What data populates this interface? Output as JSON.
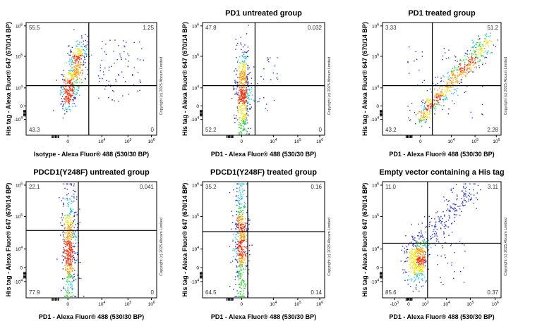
{
  "panels": [
    {
      "title": "",
      "xlabel": "Isotype - Alexa Fluor® 488 (530/30 BP)",
      "ylabel": "His tag - Alexa Fluor® 647 (670/14 BP)",
      "quadrants": {
        "ul": "55.5",
        "ur": "1.25",
        "ll": "43.3",
        "lr": "0"
      }
    },
    {
      "title": "PD1 untreated group",
      "xlabel": "PD1 - Alexa Fluor® 488 (530/30 BP)",
      "ylabel": "His tag - Alexa Fluor® 647 (670/14 BP)",
      "quadrants": {
        "ul": "47.8",
        "ur": "0.032",
        "ll": "52.2",
        "lr": "0"
      }
    },
    {
      "title": "PD1 treated group",
      "xlabel": "PD1 - Alexa Fluor® 488 (530/30 BP)",
      "ylabel": "His tag - Alexa Fluor® 647 (670/14 BP)",
      "quadrants": {
        "ul": "3.33",
        "ur": "51.2",
        "ll": "43.2",
        "lr": "2.28"
      }
    },
    {
      "title": "PDCD1(Y248F) untreated group",
      "xlabel": "PD1 - Alexa Fluor® 488 (530/30 BP)",
      "ylabel": "His tag - Alexa Fluor® 647 (670/14 BP)",
      "quadrants": {
        "ul": "22.1",
        "ur": "0.041",
        "ll": "77.9",
        "lr": "0"
      }
    },
    {
      "title": "PDCD1(Y248F) treated group",
      "xlabel": "PD1 - Alexa Fluor® 488 (530/30 BP)",
      "ylabel": "His tag - Alexa Fluor® 647 (670/14 BP)",
      "quadrants": {
        "ul": "35.2",
        "ur": "0.16",
        "ll": "64.5",
        "lr": "0.14"
      }
    },
    {
      "title": "Empty vector containing a His tag",
      "xlabel": "PD1 - Alexa Fluor® 488 (530/30 BP)",
      "ylabel": "His tag - Alexa Fluor® 647 (670/14 BP)",
      "quadrants": {
        "ul": "11.0",
        "ur": "3.11",
        "ll": "85.6",
        "lr": "0.37"
      }
    }
  ],
  "copyright": "Copyright (c) 2025 Abcam Limited",
  "ticks": {
    "y": [
      "10^6",
      "10^5",
      "10^4",
      "0",
      "-10^4"
    ],
    "x": [
      "0",
      "10^4",
      "10^5",
      "10^6"
    ],
    "x_with_negative": [
      "-10^3",
      "0",
      "10^3",
      "10^4",
      "10^5",
      "10^6"
    ]
  },
  "chart_data": [
    {
      "type": "scatter",
      "title": "",
      "xlabel": "Isotype - Alexa Fluor® 488 (530/30 BP)",
      "ylabel": "His tag - Alexa Fluor® 647 (670/14 BP)",
      "x_scale": "biexponential",
      "y_scale": "biexponential",
      "quadrant_percentages": {
        "upper_left": 55.5,
        "upper_right": 1.25,
        "lower_left": 43.3,
        "lower_right": 0
      }
    },
    {
      "type": "scatter",
      "title": "PD1 untreated group",
      "xlabel": "PD1 - Alexa Fluor® 488 (530/30 BP)",
      "ylabel": "His tag - Alexa Fluor® 647 (670/14 BP)",
      "x_scale": "biexponential",
      "y_scale": "biexponential",
      "quadrant_percentages": {
        "upper_left": 47.8,
        "upper_right": 0.032,
        "lower_left": 52.2,
        "lower_right": 0
      }
    },
    {
      "type": "scatter",
      "title": "PD1 treated group",
      "xlabel": "PD1 - Alexa Fluor® 488 (530/30 BP)",
      "ylabel": "His tag - Alexa Fluor® 647 (670/14 BP)",
      "x_scale": "biexponential",
      "y_scale": "biexponential",
      "quadrant_percentages": {
        "upper_left": 3.33,
        "upper_right": 51.2,
        "lower_left": 43.2,
        "lower_right": 2.28
      }
    },
    {
      "type": "scatter",
      "title": "PDCD1(Y248F) untreated group",
      "xlabel": "PD1 - Alexa Fluor® 488 (530/30 BP)",
      "ylabel": "His tag - Alexa Fluor® 647 (670/14 BP)",
      "x_scale": "biexponential",
      "y_scale": "biexponential",
      "quadrant_percentages": {
        "upper_left": 22.1,
        "upper_right": 0.041,
        "lower_left": 77.9,
        "lower_right": 0
      }
    },
    {
      "type": "scatter",
      "title": "PDCD1(Y248F) treated group",
      "xlabel": "PD1 - Alexa Fluor® 488 (530/30 BP)",
      "ylabel": "His tag - Alexa Fluor® 647 (670/14 BP)",
      "x_scale": "biexponential",
      "y_scale": "biexponential",
      "quadrant_percentages": {
        "upper_left": 35.2,
        "upper_right": 0.16,
        "lower_left": 64.5,
        "lower_right": 0.14
      }
    },
    {
      "type": "scatter",
      "title": "Empty vector containing a His tag",
      "xlabel": "PD1 - Alexa Fluor® 488 (530/30 BP)",
      "ylabel": "His tag - Alexa Fluor® 647 (670/14 BP)",
      "x_scale": "biexponential",
      "y_scale": "biexponential",
      "quadrant_percentages": {
        "upper_left": 11.0,
        "upper_right": 3.11,
        "lower_left": 85.6,
        "lower_right": 0.37
      }
    }
  ]
}
